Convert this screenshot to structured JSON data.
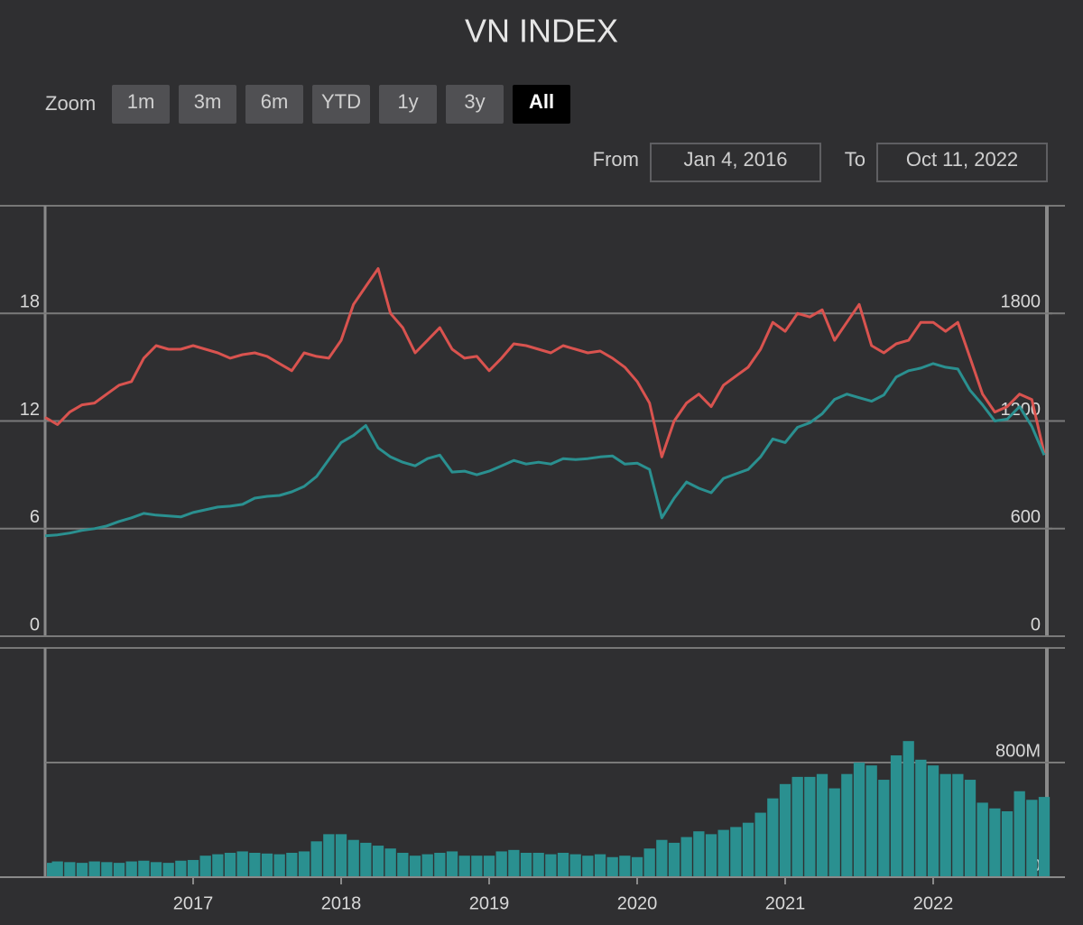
{
  "ui": {
    "title": "VN INDEX",
    "zoom_label": "Zoom",
    "buttons": [
      "1m",
      "3m",
      "6m",
      "YTD",
      "1y",
      "3y",
      "All"
    ],
    "active_button": "All",
    "from_label": "From",
    "from_value": "Jan 4, 2016",
    "to_label": "To",
    "to_value": "Oct 11, 2022"
  },
  "chart_data": [
    {
      "type": "line",
      "x": [
        "2016-01",
        "2016-02",
        "2016-03",
        "2016-04",
        "2016-05",
        "2016-06",
        "2016-07",
        "2016-08",
        "2016-09",
        "2016-10",
        "2016-11",
        "2016-12",
        "2017-01",
        "2017-02",
        "2017-03",
        "2017-04",
        "2017-05",
        "2017-06",
        "2017-07",
        "2017-08",
        "2017-09",
        "2017-10",
        "2017-11",
        "2017-12",
        "2018-01",
        "2018-02",
        "2018-03",
        "2018-04",
        "2018-05",
        "2018-06",
        "2018-07",
        "2018-08",
        "2018-09",
        "2018-10",
        "2018-11",
        "2018-12",
        "2019-01",
        "2019-02",
        "2019-03",
        "2019-04",
        "2019-05",
        "2019-06",
        "2019-07",
        "2019-08",
        "2019-09",
        "2019-10",
        "2019-11",
        "2019-12",
        "2020-01",
        "2020-02",
        "2020-03",
        "2020-04",
        "2020-05",
        "2020-06",
        "2020-07",
        "2020-08",
        "2020-09",
        "2020-10",
        "2020-11",
        "2020-12",
        "2021-01",
        "2021-02",
        "2021-03",
        "2021-04",
        "2021-05",
        "2021-06",
        "2021-07",
        "2021-08",
        "2021-09",
        "2021-10",
        "2021-11",
        "2021-12",
        "2022-01",
        "2022-02",
        "2022-03",
        "2022-04",
        "2022-05",
        "2022-06",
        "2022-07",
        "2022-08",
        "2022-09",
        "2022-10"
      ],
      "xlim": [
        "2016-01",
        "2022-10"
      ],
      "series": [
        {
          "color": "#d9534f",
          "axis": "y",
          "values": [
            12.2,
            11.8,
            12.5,
            12.9,
            13.0,
            13.5,
            14.0,
            14.2,
            15.5,
            16.2,
            16.0,
            16.0,
            16.2,
            16.0,
            15.8,
            15.5,
            15.7,
            15.8,
            15.6,
            15.2,
            14.8,
            15.8,
            15.6,
            15.5,
            16.5,
            18.5,
            19.5,
            20.5,
            18.0,
            17.2,
            15.8,
            16.5,
            17.2,
            16.0,
            15.5,
            15.6,
            14.8,
            15.5,
            16.3,
            16.2,
            16.0,
            15.8,
            16.2,
            16.0,
            15.8,
            15.9,
            15.5,
            15.0,
            14.2,
            13.0,
            10.0,
            12.0,
            13.0,
            13.5,
            12.8,
            14.0,
            14.5,
            15.0,
            16.0,
            17.5,
            17.0,
            18.0,
            17.8,
            18.2,
            16.5,
            17.5,
            18.5,
            16.2,
            15.8,
            16.3,
            16.5,
            17.5,
            17.5,
            17.0,
            17.5,
            15.5,
            13.5,
            12.5,
            12.8,
            13.5,
            13.2,
            10.2
          ]
        },
        {
          "color": "#2a9090",
          "axis": "y2",
          "values": [
            560,
            565,
            575,
            590,
            600,
            615,
            640,
            660,
            685,
            675,
            670,
            665,
            690,
            705,
            720,
            725,
            735,
            770,
            780,
            785,
            805,
            835,
            890,
            985,
            1080,
            1120,
            1175,
            1050,
            1000,
            970,
            950,
            990,
            1010,
            915,
            920,
            900,
            920,
            950,
            980,
            960,
            970,
            960,
            990,
            985,
            990,
            1000,
            1005,
            960,
            965,
            930,
            660,
            770,
            860,
            825,
            800,
            880,
            905,
            930,
            1000,
            1100,
            1080,
            1165,
            1190,
            1240,
            1320,
            1350,
            1330,
            1310,
            1345,
            1445,
            1480,
            1495,
            1520,
            1500,
            1490,
            1370,
            1290,
            1200,
            1210,
            1280,
            1170,
            1010
          ]
        }
      ],
      "ylim": [
        0,
        24
      ],
      "yticks": [
        0,
        6,
        12,
        18
      ],
      "y2lim": [
        0,
        2400
      ],
      "y2ticks": [
        0,
        600,
        1200,
        1800
      ],
      "grid": true
    },
    {
      "type": "bar",
      "x": [
        "2016-01",
        "2016-02",
        "2016-03",
        "2016-04",
        "2016-05",
        "2016-06",
        "2016-07",
        "2016-08",
        "2016-09",
        "2016-10",
        "2016-11",
        "2016-12",
        "2017-01",
        "2017-02",
        "2017-03",
        "2017-04",
        "2017-05",
        "2017-06",
        "2017-07",
        "2017-08",
        "2017-09",
        "2017-10",
        "2017-11",
        "2017-12",
        "2018-01",
        "2018-02",
        "2018-03",
        "2018-04",
        "2018-05",
        "2018-06",
        "2018-07",
        "2018-08",
        "2018-09",
        "2018-10",
        "2018-11",
        "2018-12",
        "2019-01",
        "2019-02",
        "2019-03",
        "2019-04",
        "2019-05",
        "2019-06",
        "2019-07",
        "2019-08",
        "2019-09",
        "2019-10",
        "2019-11",
        "2019-12",
        "2020-01",
        "2020-02",
        "2020-03",
        "2020-04",
        "2020-05",
        "2020-06",
        "2020-07",
        "2020-08",
        "2020-09",
        "2020-10",
        "2020-11",
        "2020-12",
        "2021-01",
        "2021-02",
        "2021-03",
        "2021-04",
        "2021-05",
        "2021-06",
        "2021-07",
        "2021-08",
        "2021-09",
        "2021-10",
        "2021-11",
        "2021-12",
        "2022-01",
        "2022-02",
        "2022-03",
        "2022-04",
        "2022-05",
        "2022-06",
        "2022-07",
        "2022-08",
        "2022-09",
        "2022-10"
      ],
      "xlim": [
        "2016-01",
        "2022-10"
      ],
      "xticks": [
        {
          "value": "2017-01",
          "label": "2017"
        },
        {
          "value": "2018-01",
          "label": "2018"
        },
        {
          "value": "2019-01",
          "label": "2019"
        },
        {
          "value": "2020-01",
          "label": "2020"
        },
        {
          "value": "2021-01",
          "label": "2021"
        },
        {
          "value": "2022-01",
          "label": "2022"
        }
      ],
      "color": "#2a9090",
      "values": [
        100,
        110,
        105,
        100,
        110,
        105,
        100,
        110,
        115,
        105,
        100,
        115,
        120,
        150,
        160,
        170,
        180,
        170,
        165,
        160,
        170,
        180,
        250,
        300,
        300,
        260,
        240,
        220,
        200,
        170,
        150,
        160,
        170,
        180,
        150,
        150,
        150,
        180,
        190,
        170,
        170,
        160,
        170,
        160,
        150,
        160,
        140,
        150,
        140,
        200,
        260,
        240,
        280,
        320,
        300,
        330,
        350,
        380,
        450,
        550,
        650,
        700,
        700,
        720,
        620,
        720,
        800,
        780,
        680,
        850,
        950,
        820,
        780,
        720,
        720,
        680,
        520,
        480,
        460,
        600,
        540,
        560
      ],
      "ylim": [
        0,
        1600
      ],
      "yticks": [
        0,
        {
          "value": 800,
          "label": "800M"
        }
      ],
      "grid": true
    }
  ]
}
